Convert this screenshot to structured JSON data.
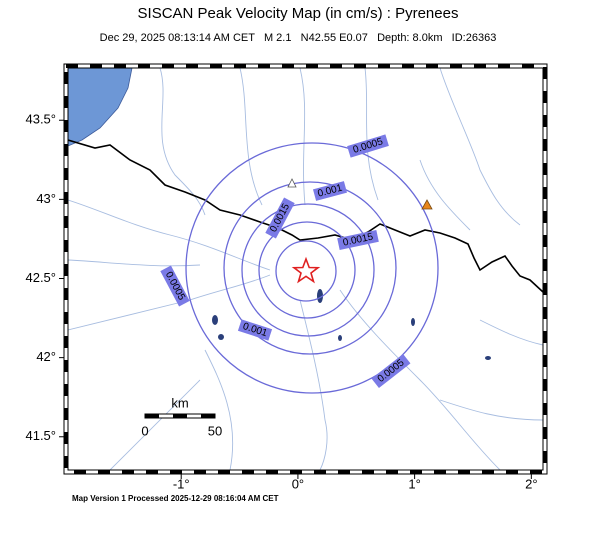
{
  "header": {
    "title": "SISCAN Peak Velocity Map (in cm/s) : Pyrenees",
    "subtitle": "Dec 29, 2025 08:13:14 AM CET   M 2.1   N42.55 E0.07   Depth: 8.0km   ID:26363"
  },
  "map": {
    "lon_range": [
      -1.97,
      2.1
    ],
    "lat_range": [
      41.29,
      43.83
    ],
    "lon_ticks": [
      {
        "value": -1,
        "label": "-1°"
      },
      {
        "value": 0,
        "label": "0°"
      },
      {
        "value": 1,
        "label": "1°"
      },
      {
        "value": 2,
        "label": "2°"
      }
    ],
    "lat_ticks": [
      {
        "value": 41.5,
        "label": "41.5°"
      },
      {
        "value": 42,
        "label": "42°"
      },
      {
        "value": 42.5,
        "label": "42.5°"
      },
      {
        "value": 43,
        "label": "43°"
      },
      {
        "value": 43.5,
        "label": "43.5°"
      }
    ],
    "contour_labels": [
      "0.0005",
      "0.001",
      "0.0015",
      "0.0015",
      "0.0005",
      "0.001",
      "0.0005"
    ]
  },
  "scale_bar": {
    "unit": "km",
    "ticks": [
      "0",
      "50"
    ]
  },
  "footer": "Map Version 1 Processed 2025-12-29 08:16:04 AM CET"
}
